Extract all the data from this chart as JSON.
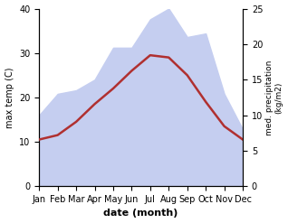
{
  "months": [
    "Jan",
    "Feb",
    "Mar",
    "Apr",
    "May",
    "Jun",
    "Jul",
    "Aug",
    "Sep",
    "Oct",
    "Nov",
    "Dec"
  ],
  "max_temp": [
    10.5,
    11.5,
    14.5,
    18.5,
    22.0,
    26.0,
    29.5,
    29.0,
    25.0,
    19.0,
    13.5,
    10.5
  ],
  "precipitation": [
    10.0,
    13.0,
    13.5,
    15.0,
    19.5,
    19.5,
    23.5,
    25.0,
    21.0,
    21.5,
    13.0,
    8.0
  ],
  "temp_color": "#b03030",
  "precip_fill_color": "#c5cef0",
  "ylabel_left": "max temp (C)",
  "ylabel_right": "med. precipitation\n(kg/m2)",
  "xlabel": "date (month)",
  "ylim_left": [
    0,
    40
  ],
  "ylim_right": [
    0,
    25
  ],
  "yticks_left": [
    0,
    10,
    20,
    30,
    40
  ],
  "yticks_right": [
    0,
    5,
    10,
    15,
    20,
    25
  ],
  "bg_color": "#ffffff"
}
